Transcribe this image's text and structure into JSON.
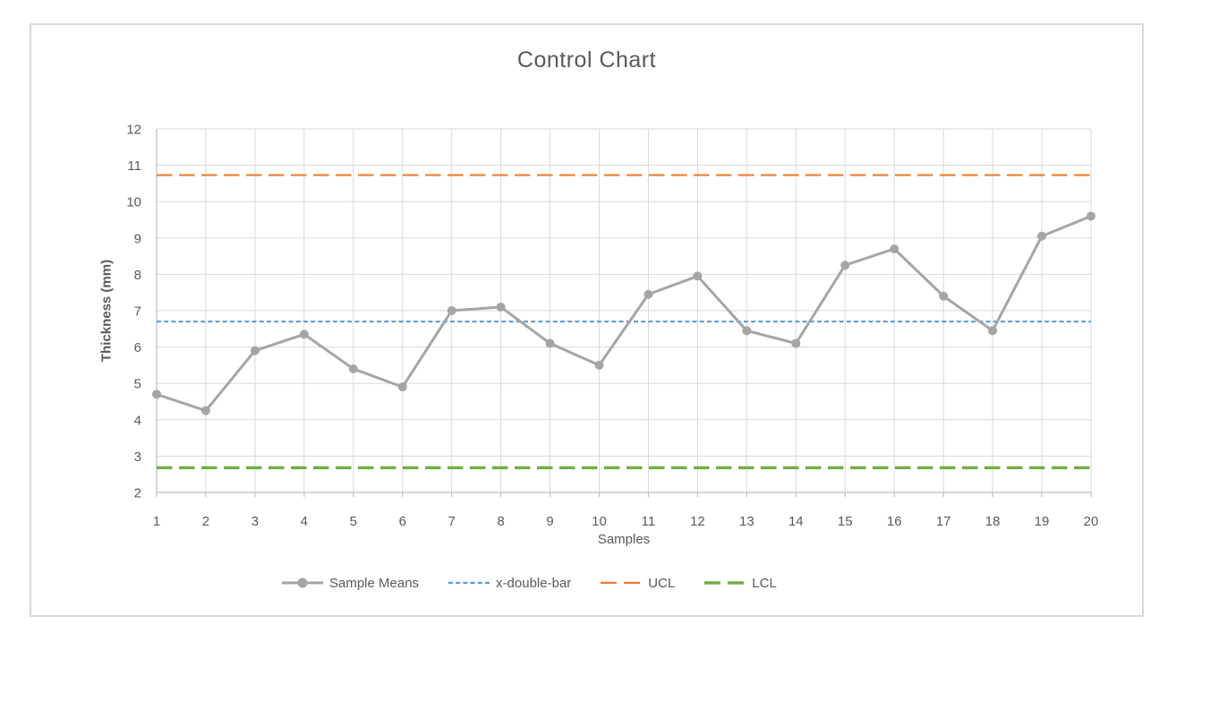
{
  "window": {
    "title": "Control Chart"
  },
  "chart_data": {
    "type": "line",
    "title": "Control Chart",
    "xlabel": "Samples",
    "ylabel": "Thickness (mm)",
    "x": [
      1,
      2,
      3,
      4,
      5,
      6,
      7,
      8,
      9,
      10,
      11,
      12,
      13,
      14,
      15,
      16,
      17,
      18,
      19,
      20
    ],
    "xticks": [
      1,
      2,
      3,
      4,
      5,
      6,
      7,
      8,
      9,
      10,
      11,
      12,
      13,
      14,
      15,
      16,
      17,
      18,
      19,
      20
    ],
    "ylim": [
      2,
      12
    ],
    "yticks": [
      2,
      3,
      4,
      5,
      6,
      7,
      8,
      9,
      10,
      11,
      12
    ],
    "grid": true,
    "legend_position": "bottom",
    "series": [
      {
        "name": "Sample Means",
        "type": "line-markers",
        "color": "#a5a5a5",
        "marker": "circle",
        "width": 3,
        "values": [
          4.7,
          4.25,
          5.9,
          6.35,
          5.4,
          4.9,
          7.0,
          7.1,
          6.1,
          5.5,
          7.45,
          7.95,
          6.45,
          6.1,
          8.25,
          8.7,
          7.4,
          6.45,
          9.05,
          9.6
        ]
      },
      {
        "name": "x-double-bar",
        "type": "constant",
        "color": "#5b9bd5",
        "dash": "short",
        "width": 2.2,
        "value": 6.7
      },
      {
        "name": "UCL",
        "type": "constant",
        "color": "#ed7d31",
        "dash": "long",
        "width": 2.2,
        "value": 10.73
      },
      {
        "name": "LCL",
        "type": "constant",
        "color": "#70ad47",
        "dash": "long",
        "width": 3.4,
        "value": 2.68
      }
    ],
    "colors": {
      "gridline": "#d9d9d9",
      "axis_line": "#bfbfbf",
      "text": "#595959"
    }
  }
}
